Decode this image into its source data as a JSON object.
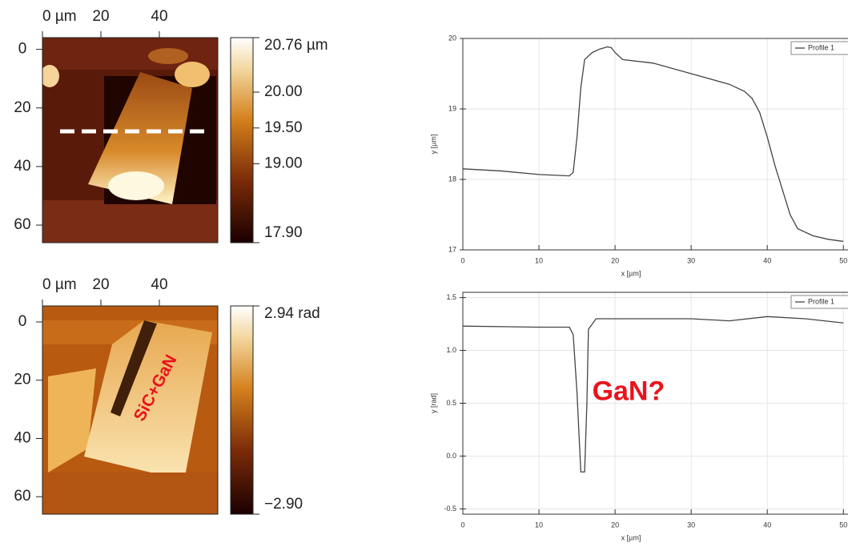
{
  "chart_data": [
    {
      "type": "image",
      "xlim": [
        0,
        60
      ],
      "ylim": [
        -4,
        66
      ],
      "xticks": [
        {
          "value": 0,
          "label": "0 µm"
        },
        20,
        40
      ],
      "yticks": [
        0,
        20,
        40,
        60
      ],
      "colorbar": {
        "clim": [
          17.9,
          20.76
        ],
        "ticks": [
          {
            "value": 20.76,
            "label": "20.76 µm"
          },
          {
            "value": 20,
            "label": "20.00"
          },
          {
            "value": 19.5,
            "label": "19.50"
          },
          {
            "value": 19,
            "label": "19.00"
          },
          {
            "value": 17.9,
            "label": "17.90"
          }
        ]
      }
    },
    {
      "type": "image",
      "xlim": [
        0,
        60
      ],
      "ylim": [
        -5.5,
        66
      ],
      "xticks": [
        {
          "value": 0,
          "label": "0 µm"
        },
        20,
        40
      ],
      "yticks": [
        0,
        20,
        40,
        60
      ],
      "colorbar": {
        "clim": [
          -2.9,
          2.94
        ],
        "ticks": [
          {
            "value": 2.94,
            "label": "2.94 rad"
          },
          {
            "value": -2.9,
            "label": "−2.90"
          }
        ]
      },
      "annotation": "SiC+GaN"
    },
    {
      "type": "line",
      "xlabel": "x [µm]",
      "ylabel": "y [µm]",
      "xlim": [
        0,
        50.5
      ],
      "ylim": [
        17,
        20
      ],
      "xticks": [
        0,
        10,
        20,
        30,
        40,
        50
      ],
      "yticks": [
        17,
        18,
        19,
        20
      ],
      "grid": true,
      "legend": "upper right",
      "x": [
        0,
        5,
        10,
        14,
        14.5,
        15,
        15.5,
        16,
        17,
        18,
        19,
        19.5,
        20,
        21,
        25,
        30,
        35,
        37,
        38,
        39,
        40,
        41,
        42,
        43,
        44,
        46,
        48,
        50
      ],
      "series": [
        {
          "name": "Profile 1",
          "color": "#444444",
          "values": [
            18.15,
            18.12,
            18.07,
            18.05,
            18.1,
            18.6,
            19.3,
            19.7,
            19.8,
            19.85,
            19.88,
            19.87,
            19.8,
            19.7,
            19.65,
            19.5,
            19.35,
            19.25,
            19.15,
            18.95,
            18.6,
            18.2,
            17.85,
            17.5,
            17.3,
            17.2,
            17.15,
            17.12
          ]
        }
      ]
    },
    {
      "type": "line",
      "xlabel": "x [µm]",
      "ylabel": "y [rad]",
      "xlim": [
        0,
        50.5
      ],
      "ylim": [
        -0.55,
        1.55
      ],
      "xticks": [
        0,
        10,
        20,
        30,
        40,
        50
      ],
      "yticks": [
        -0.5,
        {
          "value": 0,
          "label": "0.0"
        },
        0.5,
        {
          "value": 1,
          "label": "1.0"
        },
        1.5
      ],
      "grid": true,
      "legend": "upper right",
      "x": [
        0,
        10,
        14,
        14.5,
        15,
        15.5,
        16,
        16.3,
        16.5,
        17,
        17.5,
        20,
        30,
        35,
        40,
        45,
        50
      ],
      "series": [
        {
          "name": "Profile 1",
          "color": "#444444",
          "values": [
            1.23,
            1.22,
            1.22,
            1.15,
            0.6,
            -0.15,
            -0.15,
            0.5,
            1.2,
            1.25,
            1.3,
            1.3,
            1.3,
            1.28,
            1.32,
            1.3,
            1.26
          ]
        }
      ],
      "annotation": {
        "text": "GaN?",
        "color": "#e8141c"
      }
    }
  ]
}
